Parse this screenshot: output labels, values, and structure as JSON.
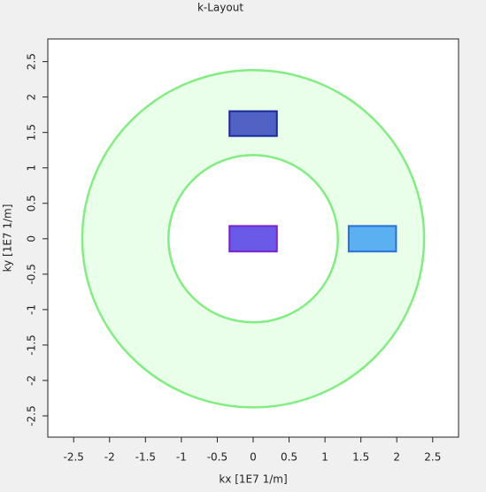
{
  "chart_data": {
    "type": "shapes",
    "title": "k-Layout",
    "x_label": "kx [1E7 1/m]",
    "y_label": "ky [1E7 1/m]",
    "xlim": [
      -2.86,
      2.86
    ],
    "ylim": [
      -2.8,
      2.82
    ],
    "xticks": [
      -2.5,
      -2,
      -1.5,
      -1,
      -0.5,
      0,
      0.5,
      1,
      1.5,
      2,
      2.5
    ],
    "yticks": [
      -2.5,
      -2,
      -1.5,
      -1,
      -0.5,
      0,
      0.5,
      1,
      1.5,
      2,
      2.5
    ],
    "rings": [
      {
        "inner_radius": 1.18,
        "outer_radius": 2.38,
        "color": "#eaffea",
        "edge_color": "#80ee80"
      }
    ],
    "rects": [
      {
        "x": [
          -0.33,
          0.33
        ],
        "y": [
          1.45,
          1.8
        ],
        "color": "#5262c4",
        "edge_color": "#1a2a9a"
      },
      {
        "x": [
          -0.33,
          0.33
        ],
        "y": [
          -0.18,
          0.18
        ],
        "color": "#6a5ae8",
        "edge_color": "#7a22cc"
      },
      {
        "x": [
          1.33,
          1.99
        ],
        "y": [
          -0.18,
          0.18
        ],
        "color": "#5ab0f0",
        "edge_color": "#2a70d8"
      }
    ]
  }
}
